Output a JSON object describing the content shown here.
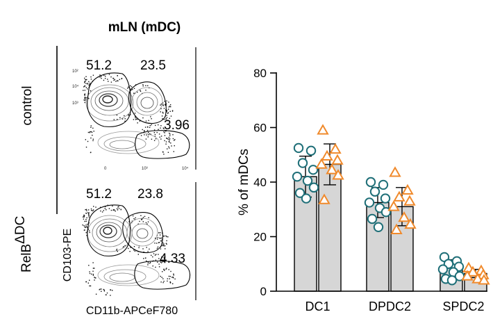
{
  "flow_panel": {
    "title": "mLN (mDC)",
    "row_labels": [
      "control",
      "RelB"
    ],
    "relb_superscript": "ΔDC",
    "y_axis_label": "CD103-PE",
    "x_axis_label": "CD11b-APCeF780",
    "plots": [
      {
        "name": "control",
        "gates": [
          "51.2",
          "23.5",
          "3.96"
        ]
      },
      {
        "name": "relb-dc",
        "gates": [
          "51.2",
          "23.8",
          "4.33"
        ]
      }
    ],
    "tick_labels": {
      "y": [
        "10⁴",
        "10³",
        "10²"
      ],
      "x": [
        "0",
        "10³",
        "10⁴"
      ]
    }
  },
  "chart_data": {
    "type": "bar",
    "title": "",
    "xlabel": "",
    "ylabel": "% of mDCs",
    "ylim": [
      0,
      80
    ],
    "yticks": [
      0,
      20,
      40,
      60,
      80
    ],
    "categories": [
      "DC1",
      "DPDC2",
      "SPDC2"
    ],
    "series": [
      {
        "name": "control",
        "marker": "circle",
        "color": "#1f6f78",
        "values": [
          42.0,
          32.5,
          8.5
        ],
        "errors": [
          7.5,
          5.5,
          3.0
        ],
        "points": [
          [
            52.5,
            51.5,
            47.0,
            44.5,
            42.0,
            40.5,
            38.0,
            36.0,
            34.0
          ],
          [
            40.0,
            39.0,
            36.5,
            34.0,
            32.5,
            30.5,
            29.0,
            26.5,
            23.5
          ],
          [
            12.5,
            11.0,
            10.0,
            9.0,
            8.0,
            7.0,
            5.5,
            4.5,
            4.0
          ]
        ]
      },
      {
        "name": "RelB ΔDC",
        "marker": "triangle",
        "color": "#f08a2c",
        "values": [
          46.5,
          31.0,
          6.5
        ],
        "errors": [
          7.5,
          7.0,
          1.5
        ],
        "points": [
          [
            59.0,
            52.0,
            49.5,
            48.0,
            46.5,
            44.5,
            42.5,
            33.5
          ],
          [
            43.5,
            37.0,
            34.5,
            33.0,
            31.0,
            27.0,
            24.5,
            22.5
          ],
          [
            8.5,
            7.5,
            7.0,
            6.0,
            5.5,
            4.5,
            4.0
          ]
        ]
      }
    ]
  }
}
